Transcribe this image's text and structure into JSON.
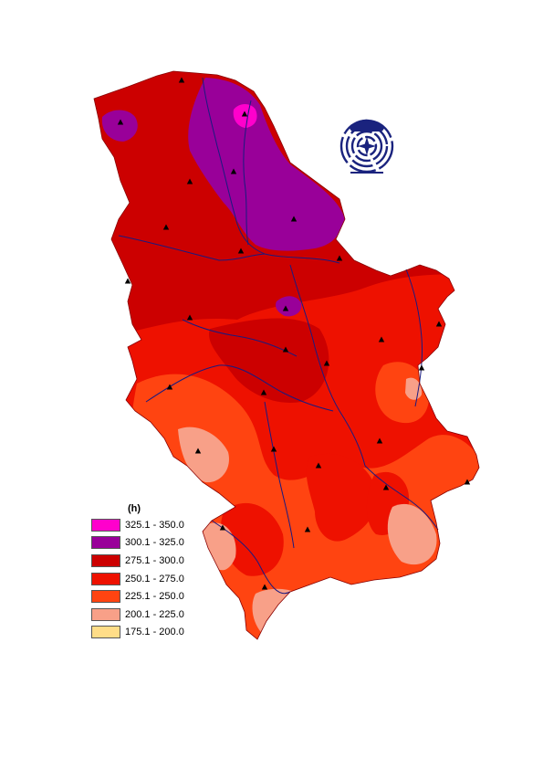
{
  "legend": {
    "title": "(h)",
    "classes": [
      {
        "label": "325.1 - 350.0",
        "color": "#ff00cc"
      },
      {
        "label": "300.1 - 325.0",
        "color": "#990099"
      },
      {
        "label": "275.1 - 300.0",
        "color": "#cc0000"
      },
      {
        "label": "250.1 - 275.0",
        "color": "#ee1100"
      },
      {
        "label": "225.1 - 250.0",
        "color": "#ff4411"
      },
      {
        "label": "200.1 - 225.0",
        "color": "#f8a088"
      },
      {
        "label": "175.1 - 200.0",
        "color": "#ffdd88"
      }
    ]
  },
  "map": {
    "region_colors": {
      "zone_325": "#ff00cc",
      "zone_300": "#990099",
      "zone_275": "#cc0000",
      "zone_250": "#ee1100",
      "zone_225": "#ff4411",
      "zone_200": "#f8a088",
      "zone_175": "#ffdd88"
    },
    "station_count": 28,
    "river_color": "#1a1a80",
    "station_color": "#000000"
  },
  "logo": {
    "icon": "institution-emblem-icon",
    "color": "#1a237e"
  }
}
